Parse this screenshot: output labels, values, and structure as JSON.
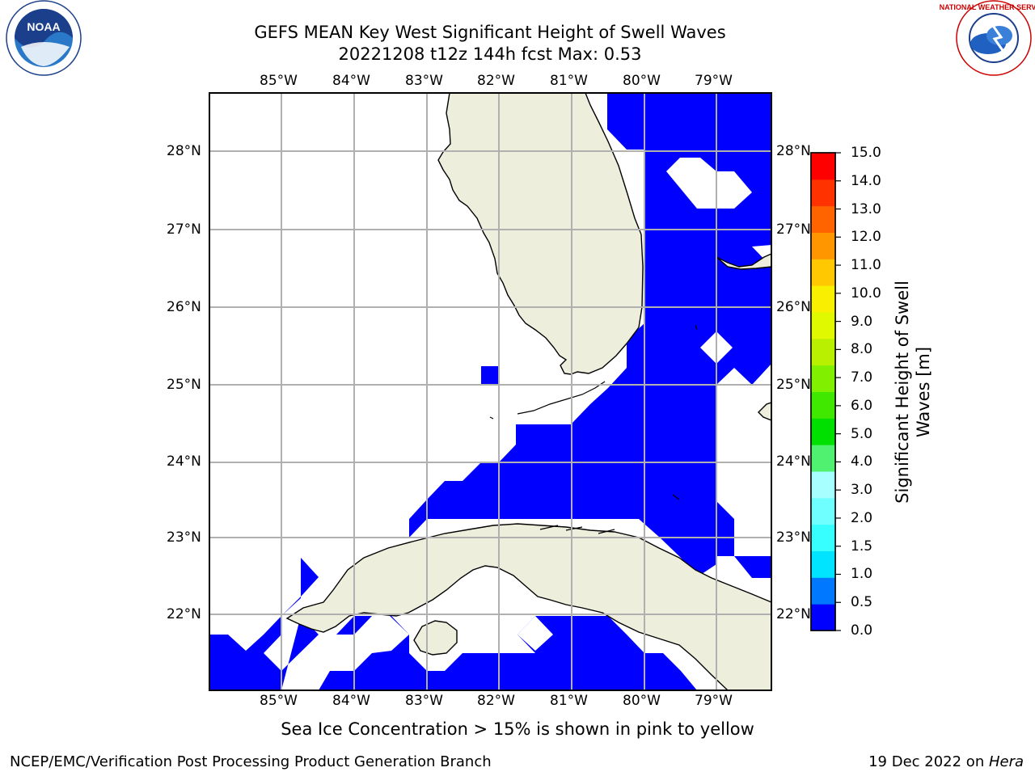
{
  "header": {
    "title_line1": "GEFS MEAN Key West Significant Height of Swell Waves",
    "title_line2": "20221208 t12z 144h fcst   Max: 0.53"
  },
  "logos": {
    "left": "NOAA",
    "right": "NATIONAL WEATHER SERVICE"
  },
  "map": {
    "lon_labels": [
      "85°W",
      "84°W",
      "83°W",
      "82°W",
      "81°W",
      "80°W",
      "79°W"
    ],
    "lat_labels": [
      "28°N",
      "27°N",
      "26°N",
      "25°N",
      "24°N",
      "23°N",
      "22°N"
    ],
    "colors": {
      "ocean": "#ffffff",
      "land": "#eeeedd",
      "swell": "#0000ff",
      "grid": "#b0b0b0"
    }
  },
  "colorbar": {
    "title": "Significant Height of Swell Waves [m]",
    "title_line1": "Significant Height of Swell",
    "title_line2": "Waves [m]",
    "ticks": [
      "0.0",
      "0.5",
      "1.0",
      "1.5",
      "2.0",
      "3.0",
      "4.0",
      "5.0",
      "6.0",
      "7.0",
      "8.0",
      "9.0",
      "10.0",
      "11.0",
      "12.0",
      "13.0",
      "14.0",
      "15.0"
    ],
    "colors": [
      "#0000ff",
      "#0078ff",
      "#00e4ff",
      "#38ffff",
      "#70ffff",
      "#a8ffff",
      "#50f070",
      "#00e000",
      "#40e800",
      "#80f000",
      "#b8f000",
      "#e0f800",
      "#f8f000",
      "#ffc800",
      "#ff9600",
      "#ff6400",
      "#ff3200",
      "#ff0000"
    ]
  },
  "note": "Sea Ice Concentration > 15% is shown in pink to yellow",
  "footer": {
    "left": "NCEP/EMC/Verification Post Processing Product Generation Branch",
    "right_date": "19 Dec 2022 on ",
    "right_host": "Hera"
  }
}
